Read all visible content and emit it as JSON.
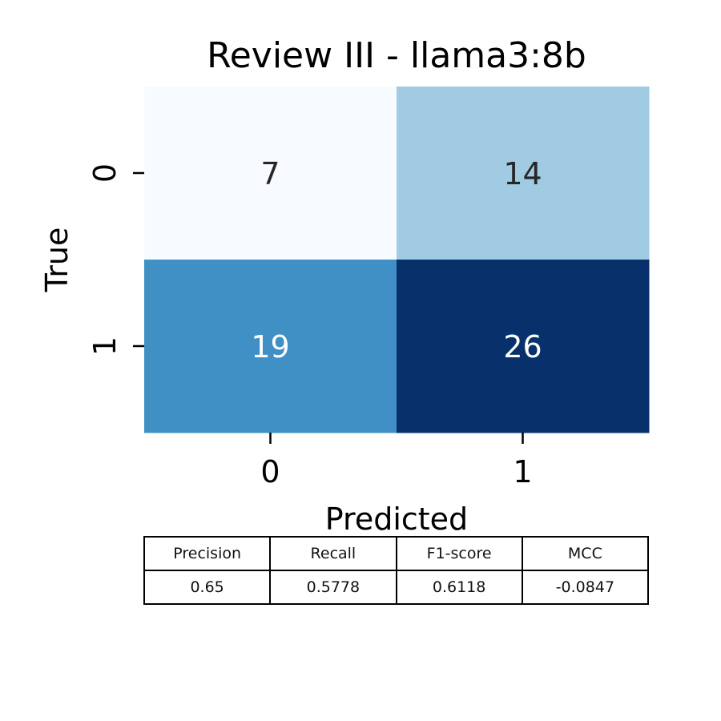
{
  "chart_data": {
    "type": "heatmap",
    "title": "Review III - llama3:8b",
    "xlabel": "Predicted",
    "ylabel": "True",
    "x_categories": [
      "0",
      "1"
    ],
    "y_categories": [
      "0",
      "1"
    ],
    "values": [
      [
        7,
        14
      ],
      [
        19,
        26
      ]
    ],
    "colormap": "Blues",
    "colorbar": false,
    "cell_colors": [
      [
        "#f7fbff",
        "#a1cbe2"
      ],
      [
        "#4090c5",
        "#08306b"
      ]
    ],
    "annotation_colors": [
      [
        "#262626",
        "#262626"
      ],
      [
        "#ffffff",
        "#ffffff"
      ]
    ]
  },
  "metrics_table": {
    "headers": [
      "Precision",
      "Recall",
      "F1-score",
      "MCC"
    ],
    "values": [
      "0.65",
      "0.5778",
      "0.6118",
      "-0.0847"
    ]
  }
}
